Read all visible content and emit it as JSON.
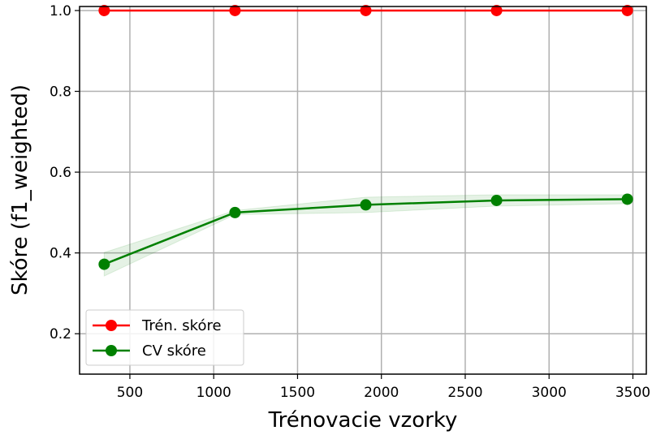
{
  "chart_data": {
    "type": "line",
    "title": "",
    "xlabel": "Trénovacie vzorky",
    "ylabel": "Skóre (f1_weighted)",
    "xlim": [
      200,
      3580
    ],
    "ylim": [
      0.1,
      1.01
    ],
    "xticks": [
      "500",
      "1000",
      "1500",
      "2000",
      "2500",
      "3000",
      "3500"
    ],
    "xtick_values": [
      500,
      1000,
      1500,
      2000,
      2500,
      3000,
      3500
    ],
    "yticks": [
      "0.2",
      "0.4",
      "0.6",
      "0.8",
      "1.0"
    ],
    "ytick_values": [
      0.2,
      0.4,
      0.6,
      0.8,
      1.0
    ],
    "grid": true,
    "legend_position": "lower-left",
    "series": [
      {
        "name": "Trén. skóre",
        "color": "#ff0000",
        "x": [
          347,
          1127,
          1907,
          2687,
          3467
        ],
        "y": [
          1.0,
          1.0,
          1.0,
          1.0,
          1.0
        ],
        "band_lower": [
          1.0,
          1.0,
          1.0,
          1.0,
          1.0
        ],
        "band_upper": [
          1.0,
          1.0,
          1.0,
          1.0,
          1.0
        ]
      },
      {
        "name": "CV skóre",
        "color": "#008000",
        "x": [
          347,
          1127,
          1907,
          2687,
          3467
        ],
        "y": [
          0.372,
          0.5,
          0.519,
          0.53,
          0.533
        ],
        "band_lower": [
          0.343,
          0.495,
          0.5,
          0.516,
          0.522
        ],
        "band_upper": [
          0.401,
          0.505,
          0.538,
          0.544,
          0.544
        ]
      }
    ]
  }
}
